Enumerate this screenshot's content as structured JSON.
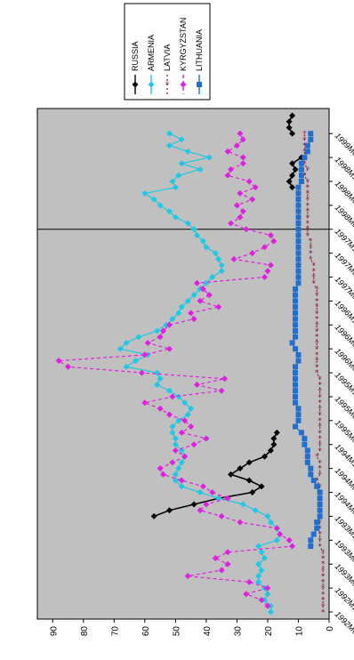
{
  "chart_data": {
    "type": "line",
    "title": "",
    "xlabel": "",
    "ylabel": "",
    "ylim": [
      0,
      95
    ],
    "yticks": [
      0,
      10,
      20,
      30,
      40,
      50,
      60,
      70,
      80,
      90
    ],
    "grid": false,
    "legend_position": "top-right",
    "x_tick_labels": [
      "1992M07",
      "1992M11",
      "1993M03",
      "1993M07",
      "1993M11",
      "1994M03",
      "1994M07",
      "1994M11",
      "1995M03",
      "1995M07",
      "1995M11",
      "1996M03",
      "1996M07",
      "1996M11",
      "1997M03",
      "1997M07",
      "1997M11",
      "1998M03",
      "1998M07",
      "1998M11",
      "1999M03"
    ],
    "vertical_marker_index": 16,
    "series": [
      {
        "name": "RUSSIA",
        "color": "#000000",
        "dash": "",
        "marker": "diamond",
        "values": [
          null,
          null,
          null,
          null,
          null,
          null,
          null,
          null,
          null,
          null,
          null,
          null,
          null,
          null,
          null,
          null,
          57,
          52,
          44,
          36,
          25,
          22,
          26,
          32,
          29,
          26,
          21,
          19,
          18,
          18,
          17,
          null,
          null,
          null,
          null,
          null,
          null,
          null,
          null,
          null,
          null,
          null,
          null,
          null,
          null,
          null,
          null,
          null,
          null,
          null,
          null,
          null,
          null,
          null,
          null,
          null,
          null,
          null,
          null,
          null,
          null,
          null,
          null,
          null,
          null,
          null,
          null,
          null,
          null,
          null,
          null,
          12,
          13,
          12,
          11,
          12,
          9,
          null,
          null,
          null,
          12,
          13,
          13,
          12
        ]
      },
      {
        "name": "ARMENIA",
        "color": "#1ec8e6",
        "dash": "",
        "marker": "diamond",
        "values": [
          19,
          19,
          21,
          20,
          21,
          23,
          23,
          22,
          23,
          21,
          22,
          23,
          17,
          16,
          17,
          19,
          20,
          24,
          28,
          36,
          42,
          48,
          50,
          50,
          49,
          48,
          47,
          48,
          50,
          50,
          51,
          51,
          49,
          46,
          45,
          47,
          49,
          52,
          56,
          55,
          56,
          66,
          63,
          59,
          68,
          66,
          62,
          56,
          53,
          51,
          49,
          48,
          46,
          44,
          42,
          40,
          38,
          35,
          35,
          36,
          37,
          40,
          41,
          43,
          44,
          46,
          50,
          52,
          55,
          57,
          60,
          50,
          51,
          49,
          42,
          48,
          39,
          46,
          52,
          48,
          52
        ]
      },
      {
        "name": "LATVIA",
        "color": "#8a2a4a",
        "dash": "2 3",
        "marker": "star",
        "values": [
          2,
          2,
          2,
          2,
          2,
          2,
          2,
          2,
          2,
          2,
          2,
          3,
          3,
          3,
          3,
          3,
          3,
          3,
          3,
          3,
          3,
          3,
          4,
          3,
          3,
          3,
          4,
          3,
          3,
          3,
          3,
          3,
          3,
          3,
          3,
          3,
          3,
          3,
          3,
          3,
          4,
          4,
          4,
          4,
          4,
          4,
          4,
          4,
          4,
          4,
          4,
          4,
          4,
          4,
          4,
          5,
          5,
          5,
          5,
          6,
          6,
          6,
          6,
          7,
          7,
          7,
          7,
          7,
          7,
          7,
          7,
          7,
          7,
          8,
          7,
          8,
          8,
          8,
          8,
          8,
          8
        ]
      },
      {
        "name": "KYRGYZSTAN",
        "color": "#e020e0",
        "dash": "4 3",
        "marker": "diamond",
        "values": [
          null,
          20,
          22,
          27,
          20,
          26,
          46,
          35,
          33,
          37,
          33,
          12,
          13,
          16,
          17,
          29,
          35,
          42,
          40,
          33,
          38,
          41,
          48,
          54,
          55,
          51,
          47,
          50,
          44,
          40,
          48,
          45,
          47,
          52,
          55,
          60,
          51,
          35,
          43,
          34,
          61,
          85,
          88,
          60,
          52,
          59,
          55,
          54,
          52,
          44,
          45,
          36,
          42,
          39,
          41,
          43,
          21,
          20,
          19,
          31,
          25,
          21,
          18,
          19,
          27,
          32,
          29,
          28,
          30,
          25,
          29,
          24,
          26,
          33,
          32,
          28,
          28,
          33,
          30,
          28,
          29
        ]
      },
      {
        "name": "LITHUANIA",
        "color": "#1f6fd0",
        "dash": "",
        "marker": "square",
        "values": [
          null,
          null,
          null,
          null,
          null,
          null,
          null,
          null,
          null,
          null,
          null,
          6,
          6,
          5,
          4,
          4,
          3,
          3,
          3,
          3,
          3,
          4,
          5,
          6,
          6,
          7,
          7,
          7,
          8,
          8,
          9,
          11,
          10,
          10,
          10,
          11,
          11,
          11,
          11,
          11,
          11,
          11,
          10,
          10,
          11,
          12,
          11,
          11,
          11,
          11,
          11,
          11,
          11,
          11,
          11,
          10,
          10,
          10,
          10,
          10,
          10,
          10,
          10,
          10,
          10,
          10,
          10,
          10,
          10,
          10,
          10,
          10,
          9,
          9,
          9,
          9,
          8,
          7,
          7,
          6,
          6
        ]
      }
    ]
  }
}
